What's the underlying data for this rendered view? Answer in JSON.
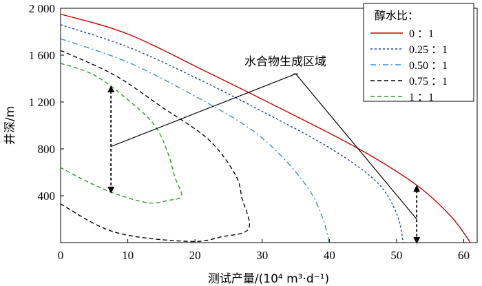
{
  "chart_data": {
    "type": "line",
    "xlabel": "测试产量/(10⁴ m³·d⁻¹)",
    "ylabel": "井深/m",
    "xlim": [
      0,
      62
    ],
    "ylim": [
      0,
      2000
    ],
    "x_ticks": [
      0,
      10,
      20,
      30,
      40,
      50,
      60
    ],
    "y_ticks": [
      400,
      800,
      1200,
      1600,
      2000
    ],
    "x_tick_labels": [
      "0",
      "10",
      "20",
      "30",
      "40",
      "50",
      "60"
    ],
    "y_tick_labels": [
      "400",
      "800",
      "1 200",
      "1 600",
      "2 000"
    ],
    "grid": false,
    "legend_position": "top-right",
    "legend_title": "醇水比：",
    "annotation": "水合物生成区域",
    "series": [
      {
        "name": "0 ：1",
        "color": "#cc0000",
        "dash": "solid",
        "points": [
          [
            0,
            1950
          ],
          [
            10,
            1780
          ],
          [
            22,
            1450
          ],
          [
            35,
            1080
          ],
          [
            45,
            780
          ],
          [
            53,
            490
          ],
          [
            58,
            230
          ],
          [
            61,
            0
          ]
        ]
      },
      {
        "name": "0.25 ：1",
        "color": "#1a3fa8",
        "dash": "dot",
        "points": [
          [
            0,
            1860
          ],
          [
            10,
            1670
          ],
          [
            20,
            1410
          ],
          [
            30,
            1120
          ],
          [
            40,
            810
          ],
          [
            47,
            520
          ],
          [
            50,
            250
          ],
          [
            51,
            0
          ]
        ]
      },
      {
        "name": "0.50 ：1",
        "color": "#3a8fd6",
        "dash": "dashdot",
        "points": [
          [
            0,
            1740
          ],
          [
            10,
            1540
          ],
          [
            20,
            1250
          ],
          [
            28,
            980
          ],
          [
            33,
            730
          ],
          [
            37,
            450
          ],
          [
            39,
            210
          ],
          [
            40,
            0
          ]
        ]
      },
      {
        "name": "0.75 ：1",
        "color": "#000000",
        "dash": "dash",
        "points": [
          [
            0,
            1640
          ],
          [
            8,
            1430
          ],
          [
            15,
            1160
          ],
          [
            22,
            880
          ],
          [
            26,
            580
          ],
          [
            27,
            380
          ],
          [
            28,
            120
          ],
          [
            24,
            50
          ],
          [
            19,
            10
          ],
          [
            8,
            90
          ],
          [
            0,
            330
          ]
        ]
      },
      {
        "name": "1 ：1",
        "color": "#2e9a2e",
        "dash": "dash",
        "points": [
          [
            0,
            1530
          ],
          [
            5,
            1430
          ],
          [
            10,
            1220
          ],
          [
            14,
            1000
          ],
          [
            16,
            760
          ],
          [
            17,
            560
          ],
          [
            18,
            400
          ],
          [
            16,
            360
          ],
          [
            13,
            340
          ],
          [
            8,
            420
          ],
          [
            4,
            520
          ],
          [
            0,
            640
          ]
        ]
      }
    ],
    "ticks_text": {
      "x_0": "0",
      "x_10": "10",
      "x_20": "20",
      "x_30": "30",
      "x_40": "40",
      "x_50": "50",
      "x_60": "60"
    },
    "arrows": [
      {
        "x": 7.5,
        "y_from": 1330,
        "y_to": 430
      },
      {
        "x": 53,
        "y_from": 480,
        "y_to": 0
      }
    ],
    "callout": {
      "apex": [
        35,
        1440
      ],
      "to_left": [
        7.5,
        820
      ],
      "to_right": [
        53,
        200
      ]
    }
  }
}
